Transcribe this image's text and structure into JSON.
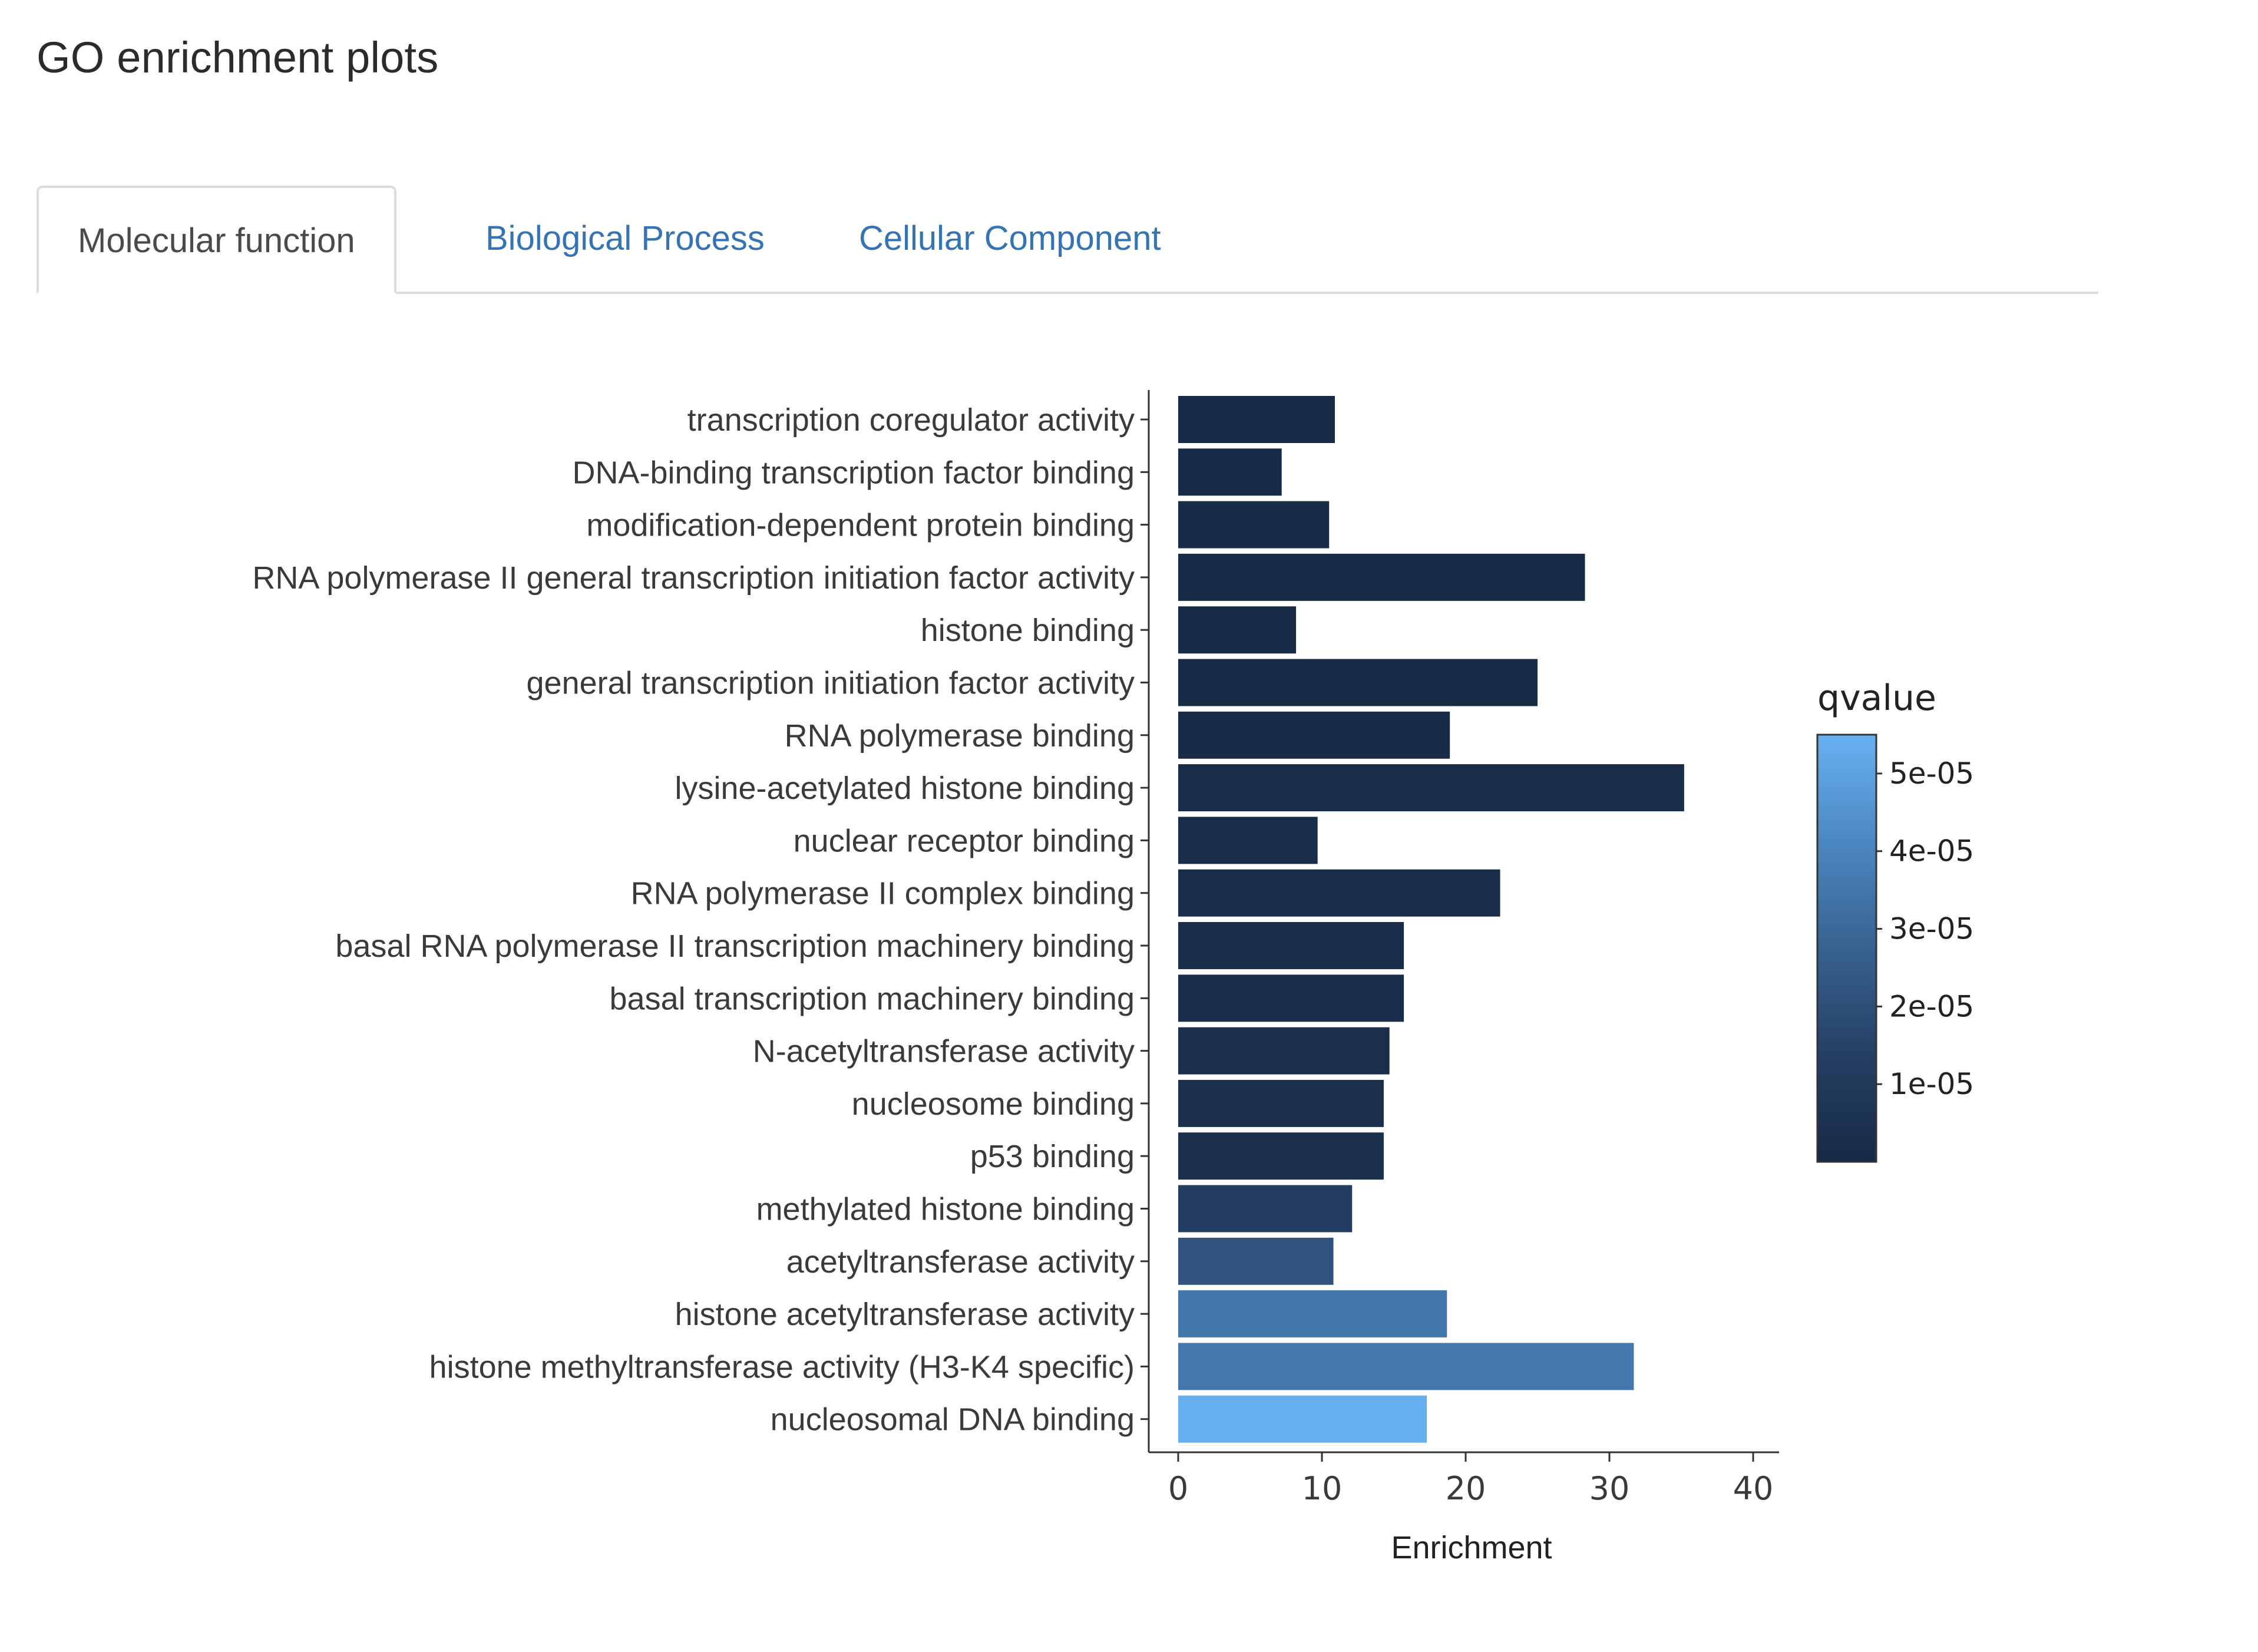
{
  "page": {
    "title": "GO enrichment plots"
  },
  "tabs": [
    {
      "label": "Molecular function",
      "active": true
    },
    {
      "label": "Biological Process",
      "active": false
    },
    {
      "label": "Cellular Component",
      "active": false
    }
  ],
  "colors": {
    "link": "#3474b5",
    "qvalue_low": "#172a45",
    "qvalue_high": "#67b1f2"
  },
  "chart_data": {
    "type": "bar",
    "orientation": "horizontal",
    "title": "",
    "xlabel": "Enrichment",
    "ylabel": "",
    "xlim": [
      0,
      40
    ],
    "xticks": [
      0,
      10,
      20,
      30,
      40
    ],
    "categories": [
      "transcription coregulator activity",
      "DNA-binding transcription factor binding",
      "modification-dependent protein binding",
      "RNA polymerase II general transcription initiation factor activity",
      "histone binding",
      "general transcription initiation factor activity",
      "RNA polymerase binding",
      "lysine-acetylated histone binding",
      "nuclear receptor binding",
      "RNA polymerase II complex binding",
      "basal RNA polymerase II transcription machinery binding",
      "basal transcription machinery binding",
      "N-acetyltransferase activity",
      "nucleosome binding",
      "p53 binding",
      "methylated histone binding",
      "acetyltransferase activity",
      "histone acetyltransferase activity",
      "histone methyltransferase activity (H3-K4 specific)",
      "nucleosomal DNA binding"
    ],
    "values": [
      10.9,
      7.2,
      10.5,
      28.3,
      8.2,
      25.0,
      18.9,
      35.2,
      9.7,
      22.4,
      15.7,
      15.7,
      14.7,
      14.3,
      14.3,
      12.1,
      10.8,
      18.7,
      31.7,
      17.3
    ],
    "qvalues": [
      3e-07,
      5e-07,
      7e-07,
      8e-07,
      8e-07,
      1.2e-06,
      1.4e-06,
      1.5e-06,
      1.8e-06,
      2e-06,
      2.5e-06,
      2.5e-06,
      3e-06,
      3.5e-06,
      3.8e-06,
      1.2e-05,
      2.2e-05,
      3.5e-05,
      3.6e-05,
      5.4e-05
    ],
    "colorbar": {
      "title": "qvalue",
      "ticks": [
        "5e-05",
        "4e-05",
        "3e-05",
        "2e-05",
        "1e-05"
      ],
      "tick_values": [
        5e-05,
        4e-05,
        3e-05,
        2e-05,
        1e-05
      ],
      "range": [
        0,
        5.5e-05
      ]
    },
    "grid": false,
    "legend": "colorbar-right"
  }
}
